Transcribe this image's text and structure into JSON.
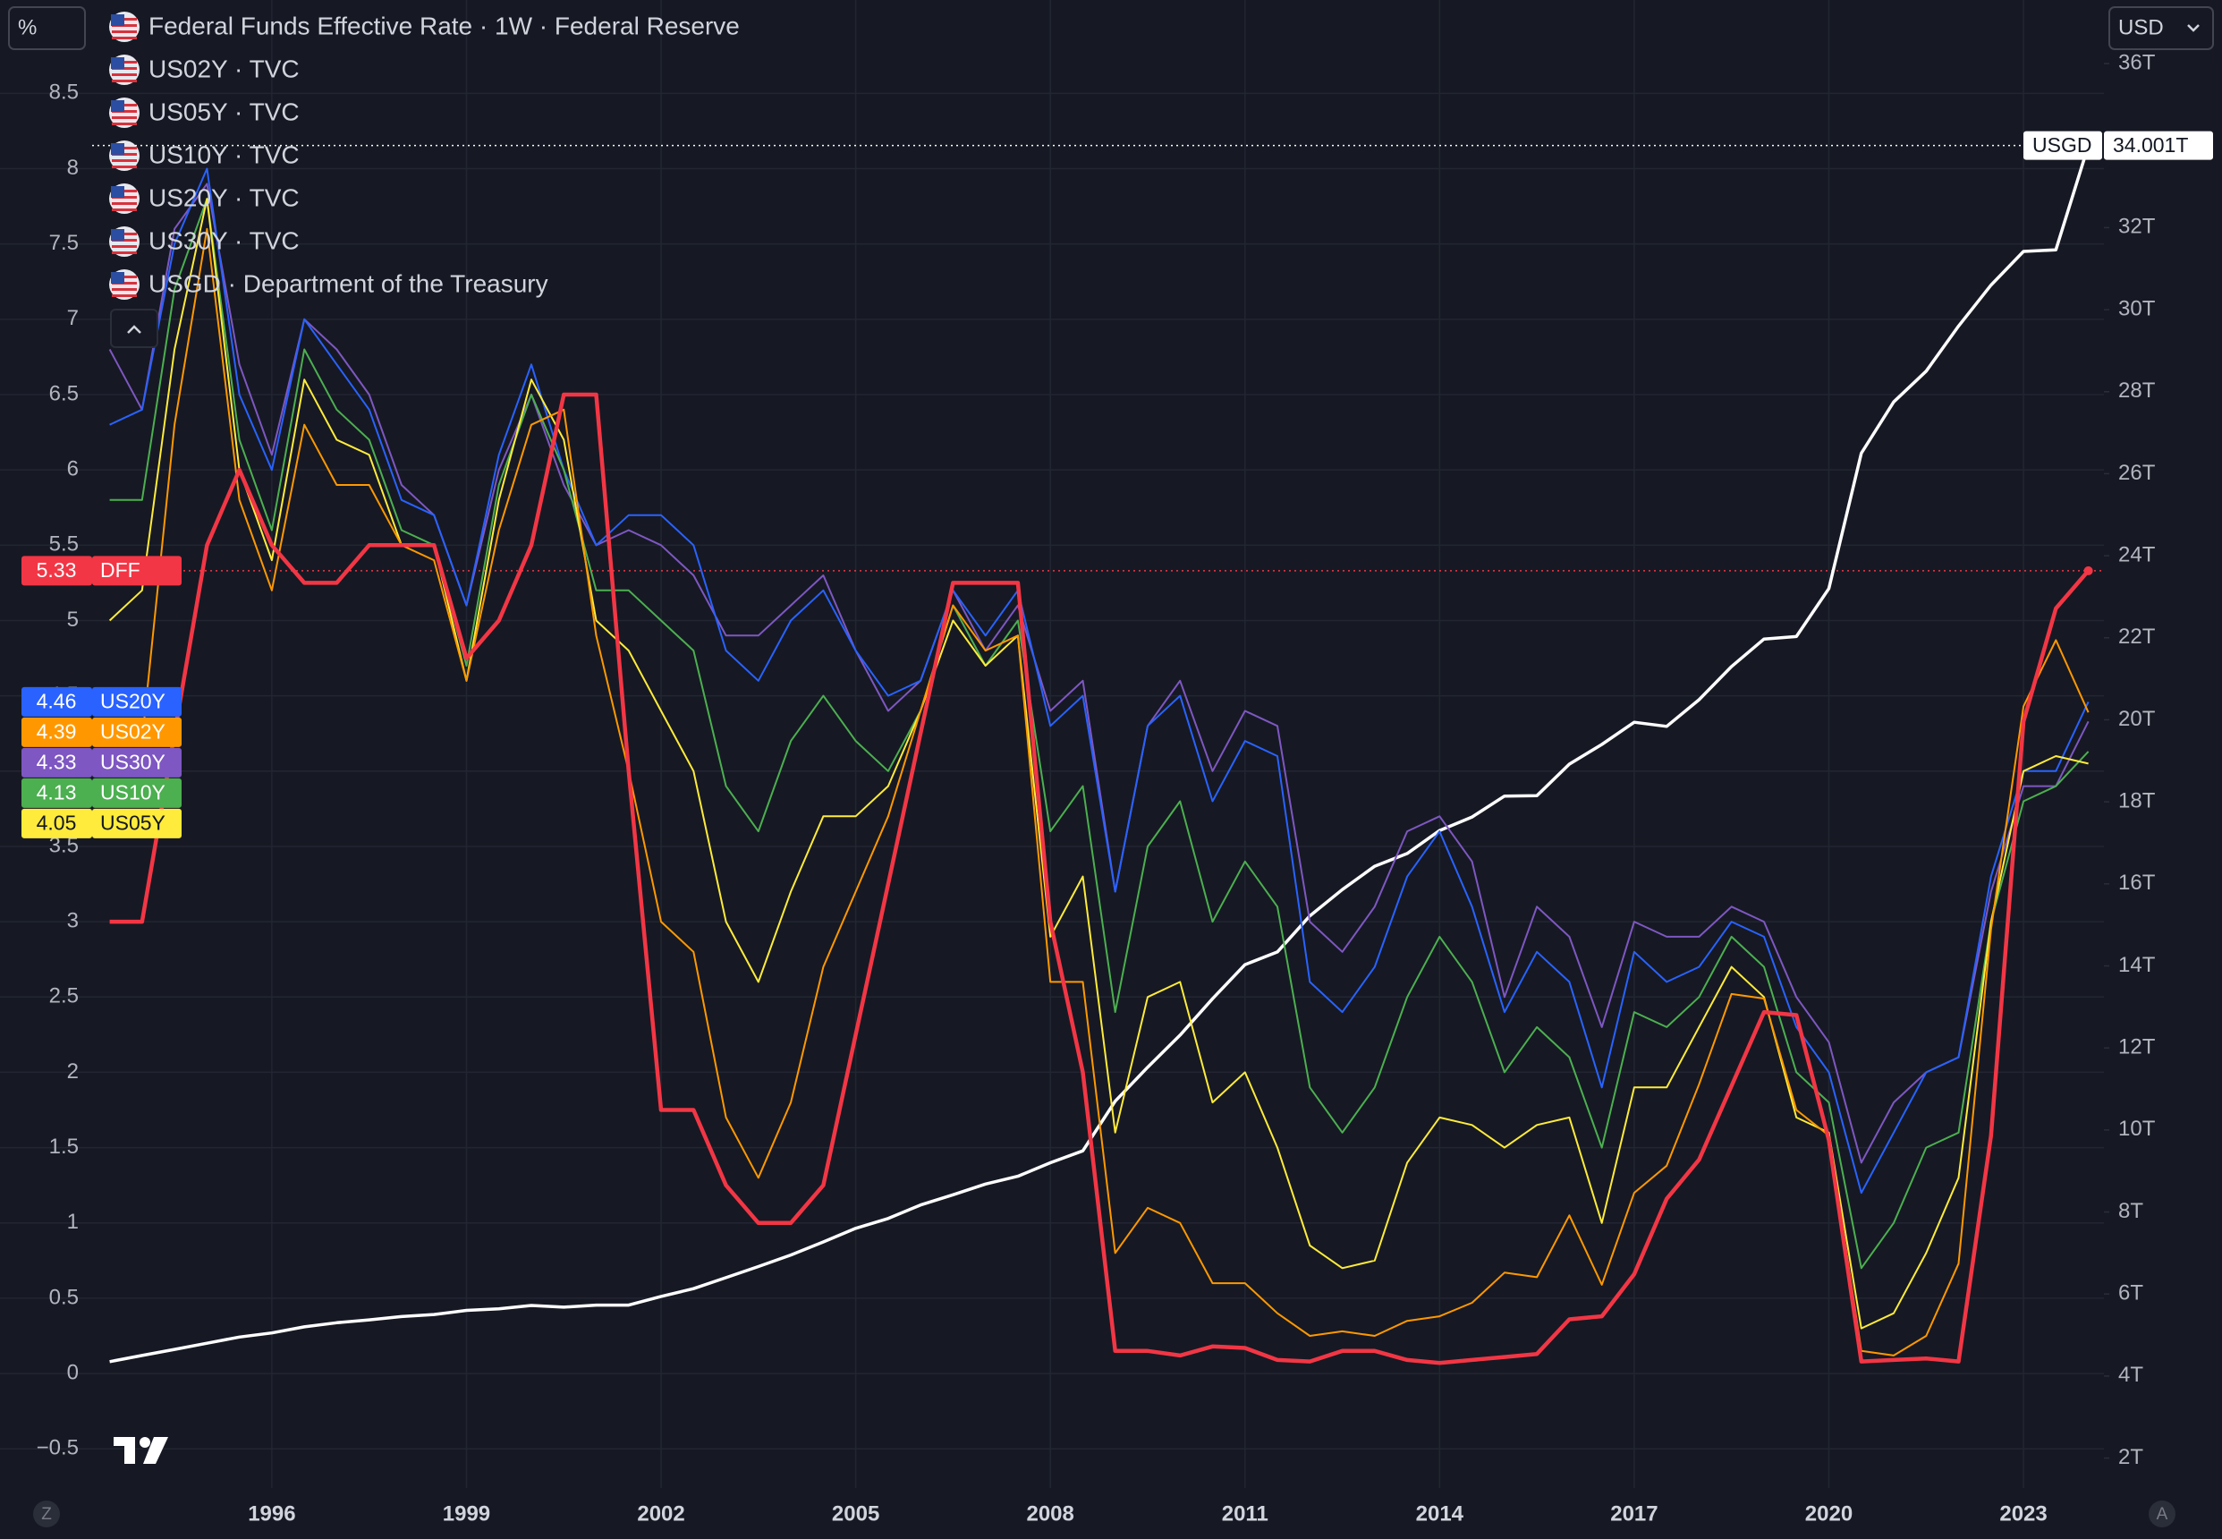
{
  "chart_data": {
    "type": "line",
    "ui": {
      "scale_button": "%",
      "currency": "USD",
      "left_corner": "Z",
      "right_corner": "A"
    },
    "x": [
      1993.5,
      1994,
      1994.5,
      1995,
      1995.5,
      1996,
      1996.5,
      1997,
      1997.5,
      1998,
      1998.5,
      1999,
      1999.5,
      2000,
      2000.5,
      2001,
      2001.5,
      2002,
      2002.5,
      2003,
      2003.5,
      2004,
      2004.5,
      2005,
      2005.5,
      2006,
      2006.5,
      2007,
      2007.5,
      2008,
      2008.5,
      2009,
      2009.5,
      2010,
      2010.5,
      2011,
      2011.5,
      2012,
      2012.5,
      2013,
      2013.5,
      2014,
      2014.5,
      2015,
      2015.5,
      2016,
      2016.5,
      2017,
      2017.5,
      2018,
      2018.5,
      2019,
      2019.5,
      2020,
      2020.5,
      2021,
      2021.5,
      2022,
      2022.5,
      2023,
      2023.5,
      2024
    ],
    "xlim": [
      1993.23,
      2024.24
    ],
    "xticks": [
      1996,
      1999,
      2002,
      2005,
      2008,
      2011,
      2014,
      2017,
      2020,
      2023
    ],
    "ylim": [
      -0.76,
      9.12
    ],
    "yticks": [
      {
        "value": -0.5,
        "label": "−0.5"
      },
      0,
      0.5,
      1,
      1.5,
      2,
      2.5,
      3,
      3.5,
      4,
      4.5,
      5,
      5.5,
      6,
      6.5,
      7,
      7.5,
      8,
      8.5
    ],
    "y2lim": [
      1.27,
      37.55
    ],
    "y2ticks": [
      {
        "value": 2,
        "label": "2T"
      },
      {
        "value": 4,
        "label": "4T"
      },
      {
        "value": 6,
        "label": "6T"
      },
      {
        "value": 8,
        "label": "8T"
      },
      {
        "value": 10,
        "label": "10T"
      },
      {
        "value": 12,
        "label": "12T"
      },
      {
        "value": 14,
        "label": "14T"
      },
      {
        "value": 16,
        "label": "16T"
      },
      {
        "value": 18,
        "label": "18T"
      },
      {
        "value": 20,
        "label": "20T"
      },
      {
        "value": 22,
        "label": "22T"
      },
      {
        "value": 24,
        "label": "24T"
      },
      {
        "value": 26,
        "label": "26T"
      },
      {
        "value": 28,
        "label": "28T"
      },
      {
        "value": 30,
        "label": "30T"
      },
      {
        "value": 32,
        "label": "32T"
      },
      {
        "value": 34,
        "label": "34T"
      },
      {
        "value": 36,
        "label": "36T"
      }
    ],
    "grid": true,
    "series": [
      {
        "name": "DFF",
        "legend": "Federal Funds Effective Rate · 1W · Federal Reserve",
        "color": "#f23645",
        "values": [
          3.0,
          3.0,
          4.25,
          5.5,
          6.0,
          5.5,
          5.25,
          5.25,
          5.5,
          5.5,
          5.5,
          4.75,
          5.0,
          5.5,
          6.5,
          6.5,
          4.0,
          1.75,
          1.75,
          1.25,
          1.0,
          1.0,
          1.25,
          2.25,
          3.25,
          4.25,
          5.25,
          5.25,
          5.25,
          3.0,
          2.0,
          0.15,
          0.15,
          0.12,
          0.18,
          0.17,
          0.09,
          0.08,
          0.15,
          0.15,
          0.09,
          0.07,
          0.09,
          0.11,
          0.13,
          0.36,
          0.38,
          0.66,
          1.16,
          1.42,
          1.91,
          2.4,
          2.38,
          1.55,
          0.08,
          0.09,
          0.1,
          0.08,
          1.58,
          4.33,
          5.08,
          5.33
        ]
      },
      {
        "name": "US02Y",
        "legend": "US02Y · TVC",
        "color": "#ff9800",
        "values": [
          4.2,
          4.2,
          6.3,
          7.6,
          5.8,
          5.2,
          6.3,
          5.9,
          5.9,
          5.5,
          5.4,
          4.6,
          5.6,
          6.3,
          6.4,
          4.9,
          4.0,
          3.0,
          2.8,
          1.7,
          1.3,
          1.8,
          2.7,
          3.2,
          3.7,
          4.4,
          5.1,
          4.8,
          4.9,
          2.6,
          2.6,
          0.8,
          1.1,
          1.0,
          0.6,
          0.6,
          0.4,
          0.25,
          0.28,
          0.25,
          0.35,
          0.38,
          0.47,
          0.67,
          0.64,
          1.05,
          0.59,
          1.2,
          1.38,
          1.92,
          2.52,
          2.49,
          1.75,
          1.58,
          0.15,
          0.12,
          0.25,
          0.73,
          2.95,
          4.43,
          4.87,
          4.39
        ]
      },
      {
        "name": "US05Y",
        "legend": "US05Y · TVC",
        "color": "#ffeb3b",
        "values": [
          5.0,
          5.2,
          6.8,
          7.8,
          6.0,
          5.4,
          6.6,
          6.2,
          6.1,
          5.5,
          5.5,
          4.6,
          5.8,
          6.6,
          6.2,
          5.0,
          4.8,
          4.4,
          4.0,
          3.0,
          2.6,
          3.2,
          3.7,
          3.7,
          3.9,
          4.4,
          5.0,
          4.7,
          4.9,
          2.9,
          3.3,
          1.6,
          2.5,
          2.6,
          1.8,
          2.0,
          1.5,
          0.85,
          0.7,
          0.75,
          1.4,
          1.7,
          1.65,
          1.5,
          1.65,
          1.7,
          1.0,
          1.9,
          1.9,
          2.3,
          2.7,
          2.5,
          1.7,
          1.6,
          0.3,
          0.4,
          0.8,
          1.3,
          3.0,
          4.0,
          4.1,
          4.05
        ]
      },
      {
        "name": "US10Y",
        "legend": "US10Y · TVC",
        "color": "#4caf50",
        "values": [
          5.8,
          5.8,
          7.2,
          7.8,
          6.2,
          5.6,
          6.8,
          6.4,
          6.2,
          5.6,
          5.5,
          4.7,
          5.9,
          6.5,
          6.0,
          5.2,
          5.2,
          5.0,
          4.8,
          3.9,
          3.6,
          4.2,
          4.5,
          4.2,
          4.0,
          4.4,
          5.1,
          4.7,
          5.0,
          3.6,
          3.9,
          2.4,
          3.5,
          3.8,
          3.0,
          3.4,
          3.1,
          1.9,
          1.6,
          1.9,
          2.5,
          2.9,
          2.6,
          2.0,
          2.3,
          2.1,
          1.5,
          2.4,
          2.3,
          2.5,
          2.9,
          2.7,
          2.0,
          1.8,
          0.7,
          1.0,
          1.5,
          1.6,
          3.0,
          3.8,
          3.9,
          4.13
        ]
      },
      {
        "name": "US20Y",
        "legend": "US20Y · TVC",
        "color": "#2962ff",
        "values": [
          6.3,
          6.4,
          7.5,
          8.0,
          6.5,
          6.0,
          7.0,
          6.7,
          6.4,
          5.8,
          5.7,
          5.1,
          6.1,
          6.7,
          6.0,
          5.5,
          5.7,
          5.7,
          5.5,
          4.8,
          4.6,
          5.0,
          5.2,
          4.8,
          4.5,
          4.6,
          5.2,
          4.9,
          5.2,
          4.3,
          4.5,
          3.2,
          4.3,
          4.5,
          3.8,
          4.2,
          4.1,
          2.6,
          2.4,
          2.7,
          3.3,
          3.6,
          3.1,
          2.4,
          2.8,
          2.6,
          1.9,
          2.8,
          2.6,
          2.7,
          3.0,
          2.9,
          2.3,
          2.0,
          1.2,
          1.6,
          2.0,
          2.1,
          3.3,
          4.0,
          4.0,
          4.46
        ]
      },
      {
        "name": "US30Y",
        "legend": "US30Y · TVC",
        "color": "#7e57c2",
        "values": [
          6.8,
          6.4,
          7.6,
          7.9,
          6.7,
          6.1,
          7.0,
          6.8,
          6.5,
          5.9,
          5.7,
          5.1,
          6.0,
          6.5,
          5.9,
          5.5,
          5.6,
          5.5,
          5.3,
          4.9,
          4.9,
          5.1,
          5.3,
          4.8,
          4.4,
          4.6,
          5.2,
          4.8,
          5.1,
          4.4,
          4.6,
          3.2,
          4.3,
          4.6,
          4.0,
          4.4,
          4.3,
          3.0,
          2.8,
          3.1,
          3.6,
          3.7,
          3.4,
          2.5,
          3.1,
          2.9,
          2.3,
          3.0,
          2.9,
          2.9,
          3.1,
          3.0,
          2.5,
          2.2,
          1.4,
          1.8,
          2.0,
          2.1,
          3.2,
          3.9,
          3.9,
          4.33
        ]
      },
      {
        "name": "USGD",
        "legend": "USGD · Department of the Treasury",
        "color": "#ffffff",
        "axis": "y2",
        "last_label": "34.001T",
        "values": [
          4.35,
          4.5,
          4.65,
          4.8,
          4.95,
          5.05,
          5.2,
          5.3,
          5.37,
          5.45,
          5.5,
          5.6,
          5.64,
          5.72,
          5.68,
          5.73,
          5.73,
          5.94,
          6.13,
          6.4,
          6.67,
          6.95,
          7.27,
          7.6,
          7.84,
          8.17,
          8.42,
          8.68,
          8.87,
          9.2,
          9.49,
          10.7,
          11.53,
          12.31,
          13.2,
          14.03,
          14.34,
          15.22,
          15.86,
          16.43,
          16.74,
          17.3,
          17.63,
          18.14,
          18.15,
          18.92,
          19.4,
          19.94,
          19.84,
          20.49,
          21.3,
          21.97,
          22.03,
          23.2,
          26.5,
          27.75,
          28.5,
          29.6,
          30.6,
          31.42,
          31.46,
          34.001
        ]
      }
    ]
  }
}
